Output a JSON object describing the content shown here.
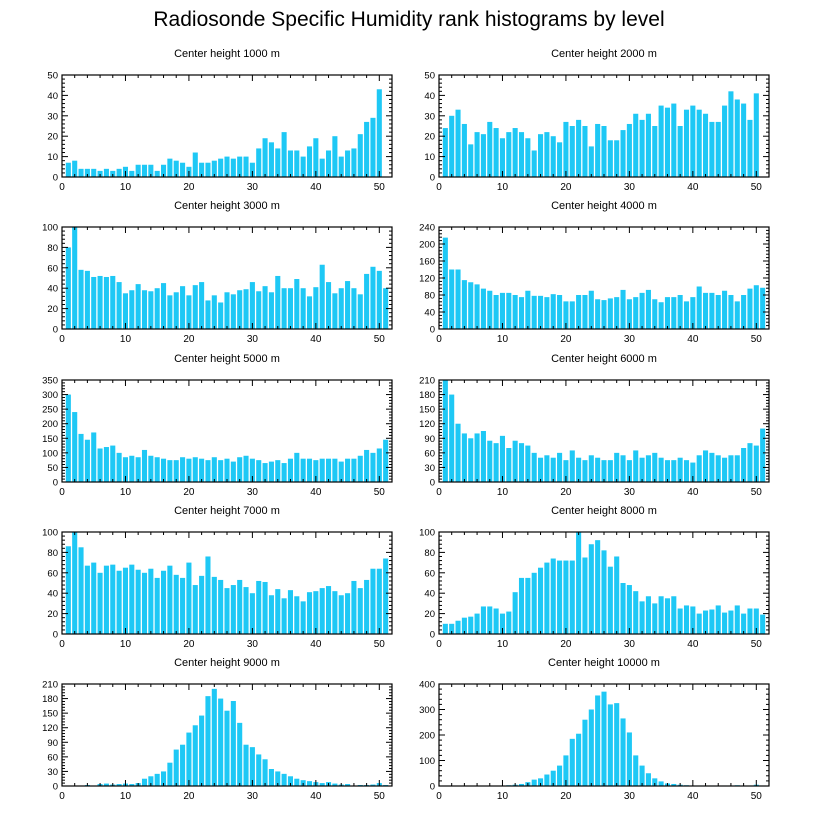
{
  "title": "Radiosonde Specific Humidity rank histograms by level",
  "colors": {
    "bar": "#1ec8f5",
    "axis": "#000000"
  },
  "chart_data": [
    {
      "type": "bar",
      "title": "Center height 1000 m",
      "xlim": [
        0,
        52
      ],
      "ylim": [
        0,
        50
      ],
      "xticks": [
        0,
        10,
        20,
        30,
        40,
        50
      ],
      "yticks": [
        0,
        10,
        20,
        30,
        40,
        50
      ],
      "x": [
        1,
        2,
        3,
        4,
        5,
        6,
        7,
        8,
        9,
        10,
        11,
        12,
        13,
        14,
        15,
        16,
        17,
        18,
        19,
        20,
        21,
        22,
        23,
        24,
        25,
        26,
        27,
        28,
        29,
        30,
        31,
        32,
        33,
        34,
        35,
        36,
        37,
        38,
        39,
        40,
        41,
        42,
        43,
        44,
        45,
        46,
        47,
        48,
        49,
        50,
        51
      ],
      "values": [
        7,
        8,
        4,
        4,
        4,
        3,
        4,
        3,
        4,
        5,
        3,
        6,
        6,
        6,
        3,
        6,
        9,
        8,
        7,
        5,
        12,
        7,
        7,
        8,
        9,
        10,
        9,
        10,
        10,
        7,
        14,
        19,
        17,
        14,
        22,
        13,
        13,
        10,
        15,
        19,
        9,
        13,
        20,
        10,
        13,
        14,
        21,
        27,
        29,
        43,
        0
      ]
    },
    {
      "type": "bar",
      "title": "Center height 2000 m",
      "xlim": [
        0,
        52
      ],
      "ylim": [
        0,
        50
      ],
      "xticks": [
        0,
        10,
        20,
        30,
        40,
        50
      ],
      "yticks": [
        0,
        10,
        20,
        30,
        40,
        50
      ],
      "x": [
        1,
        2,
        3,
        4,
        5,
        6,
        7,
        8,
        9,
        10,
        11,
        12,
        13,
        14,
        15,
        16,
        17,
        18,
        19,
        20,
        21,
        22,
        23,
        24,
        25,
        26,
        27,
        28,
        29,
        30,
        31,
        32,
        33,
        34,
        35,
        36,
        37,
        38,
        39,
        40,
        41,
        42,
        43,
        44,
        45,
        46,
        47,
        48,
        49,
        50,
        51
      ],
      "values": [
        24,
        30,
        33,
        26,
        16,
        22,
        21,
        27,
        24,
        19,
        22,
        24,
        22,
        19,
        13,
        21,
        22,
        20,
        17,
        27,
        25,
        28,
        25,
        15,
        26,
        25,
        18,
        18,
        23,
        26,
        31,
        28,
        31,
        25,
        35,
        34,
        36,
        25,
        33,
        35,
        33,
        31,
        27,
        27,
        35,
        42,
        38,
        36,
        28,
        41,
        0
      ]
    },
    {
      "type": "bar",
      "title": "Center height 3000 m",
      "xlim": [
        0,
        52
      ],
      "ylim": [
        0,
        100
      ],
      "xticks": [
        0,
        10,
        20,
        30,
        40,
        50
      ],
      "yticks": [
        0,
        20,
        40,
        60,
        80,
        100
      ],
      "x": [
        1,
        2,
        3,
        4,
        5,
        6,
        7,
        8,
        9,
        10,
        11,
        12,
        13,
        14,
        15,
        16,
        17,
        18,
        19,
        20,
        21,
        22,
        23,
        24,
        25,
        26,
        27,
        28,
        29,
        30,
        31,
        32,
        33,
        34,
        35,
        36,
        37,
        38,
        39,
        40,
        41,
        42,
        43,
        44,
        45,
        46,
        47,
        48,
        49,
        50,
        51
      ],
      "values": [
        80,
        100,
        58,
        57,
        51,
        52,
        51,
        52,
        46,
        35,
        38,
        44,
        38,
        37,
        40,
        45,
        33,
        36,
        42,
        33,
        43,
        46,
        28,
        33,
        26,
        36,
        34,
        38,
        39,
        46,
        37,
        42,
        36,
        52,
        40,
        40,
        49,
        40,
        32,
        41,
        63,
        46,
        35,
        40,
        47,
        40,
        34,
        54,
        61,
        57,
        40
      ]
    },
    {
      "type": "bar",
      "title": "Center height 4000 m",
      "xlim": [
        0,
        52
      ],
      "ylim": [
        0,
        240
      ],
      "xticks": [
        0,
        10,
        20,
        30,
        40,
        50
      ],
      "yticks": [
        0,
        40,
        80,
        120,
        160,
        200,
        240
      ],
      "x": [
        1,
        2,
        3,
        4,
        5,
        6,
        7,
        8,
        9,
        10,
        11,
        12,
        13,
        14,
        15,
        16,
        17,
        18,
        19,
        20,
        21,
        22,
        23,
        24,
        25,
        26,
        27,
        28,
        29,
        30,
        31,
        32,
        33,
        34,
        35,
        36,
        37,
        38,
        39,
        40,
        41,
        42,
        43,
        44,
        45,
        46,
        47,
        48,
        49,
        50,
        51
      ],
      "values": [
        215,
        140,
        140,
        115,
        110,
        105,
        95,
        90,
        80,
        85,
        85,
        80,
        75,
        90,
        78,
        78,
        75,
        82,
        80,
        65,
        65,
        80,
        80,
        90,
        70,
        68,
        72,
        75,
        92,
        70,
        75,
        85,
        92,
        70,
        63,
        75,
        75,
        80,
        65,
        75,
        100,
        85,
        85,
        80,
        90,
        80,
        65,
        80,
        95,
        103,
        97
      ]
    },
    {
      "type": "bar",
      "title": "Center height 5000 m",
      "xlim": [
        0,
        52
      ],
      "ylim": [
        0,
        350
      ],
      "xticks": [
        0,
        10,
        20,
        30,
        40,
        50
      ],
      "yticks": [
        0,
        50,
        100,
        150,
        200,
        250,
        300,
        350
      ],
      "x": [
        1,
        2,
        3,
        4,
        5,
        6,
        7,
        8,
        9,
        10,
        11,
        12,
        13,
        14,
        15,
        16,
        17,
        18,
        19,
        20,
        21,
        22,
        23,
        24,
        25,
        26,
        27,
        28,
        29,
        30,
        31,
        32,
        33,
        34,
        35,
        36,
        37,
        38,
        39,
        40,
        41,
        42,
        43,
        44,
        45,
        46,
        47,
        48,
        49,
        50,
        51
      ],
      "values": [
        300,
        240,
        165,
        145,
        170,
        115,
        120,
        125,
        100,
        85,
        90,
        85,
        110,
        90,
        85,
        80,
        75,
        75,
        85,
        80,
        85,
        80,
        75,
        85,
        75,
        80,
        70,
        85,
        90,
        80,
        75,
        65,
        70,
        75,
        65,
        80,
        100,
        80,
        80,
        75,
        80,
        80,
        80,
        70,
        80,
        80,
        90,
        110,
        100,
        115,
        145
      ]
    },
    {
      "type": "bar",
      "title": "Center height 6000 m",
      "xlim": [
        0,
        52
      ],
      "ylim": [
        0,
        210
      ],
      "xticks": [
        0,
        10,
        20,
        30,
        40,
        50
      ],
      "yticks": [
        0,
        30,
        60,
        90,
        120,
        150,
        180,
        210
      ],
      "x": [
        1,
        2,
        3,
        4,
        5,
        6,
        7,
        8,
        9,
        10,
        11,
        12,
        13,
        14,
        15,
        16,
        17,
        18,
        19,
        20,
        21,
        22,
        23,
        24,
        25,
        26,
        27,
        28,
        29,
        30,
        31,
        32,
        33,
        34,
        35,
        36,
        37,
        38,
        39,
        40,
        41,
        42,
        43,
        44,
        45,
        46,
        47,
        48,
        49,
        50,
        51
      ],
      "values": [
        210,
        180,
        120,
        100,
        90,
        100,
        105,
        85,
        80,
        95,
        70,
        85,
        80,
        75,
        60,
        50,
        55,
        50,
        60,
        45,
        65,
        50,
        45,
        55,
        50,
        45,
        45,
        60,
        55,
        45,
        65,
        50,
        55,
        60,
        50,
        45,
        45,
        50,
        45,
        40,
        55,
        65,
        60,
        55,
        50,
        55,
        55,
        70,
        80,
        75,
        110
      ]
    },
    {
      "type": "bar",
      "title": "Center height 7000 m",
      "xlim": [
        0,
        52
      ],
      "ylim": [
        0,
        100
      ],
      "xticks": [
        0,
        10,
        20,
        30,
        40,
        50
      ],
      "yticks": [
        0,
        20,
        40,
        60,
        80,
        100
      ],
      "x": [
        1,
        2,
        3,
        4,
        5,
        6,
        7,
        8,
        9,
        10,
        11,
        12,
        13,
        14,
        15,
        16,
        17,
        18,
        19,
        20,
        21,
        22,
        23,
        24,
        25,
        26,
        27,
        28,
        29,
        30,
        31,
        32,
        33,
        34,
        35,
        36,
        37,
        38,
        39,
        40,
        41,
        42,
        43,
        44,
        45,
        46,
        47,
        48,
        49,
        50,
        51
      ],
      "values": [
        86,
        100,
        85,
        67,
        70,
        60,
        67,
        68,
        62,
        65,
        68,
        63,
        60,
        64,
        55,
        62,
        67,
        58,
        55,
        70,
        48,
        57,
        76,
        56,
        53,
        45,
        48,
        53,
        46,
        40,
        52,
        51,
        38,
        44,
        35,
        43,
        37,
        32,
        41,
        42,
        45,
        47,
        42,
        38,
        40,
        52,
        45,
        53,
        64,
        64,
        74
      ]
    },
    {
      "type": "bar",
      "title": "Center height 8000 m",
      "xlim": [
        0,
        52
      ],
      "ylim": [
        0,
        100
      ],
      "xticks": [
        0,
        10,
        20,
        30,
        40,
        50
      ],
      "yticks": [
        0,
        20,
        40,
        60,
        80,
        100
      ],
      "x": [
        1,
        2,
        3,
        4,
        5,
        6,
        7,
        8,
        9,
        10,
        11,
        12,
        13,
        14,
        15,
        16,
        17,
        18,
        19,
        20,
        21,
        22,
        23,
        24,
        25,
        26,
        27,
        28,
        29,
        30,
        31,
        32,
        33,
        34,
        35,
        36,
        37,
        38,
        39,
        40,
        41,
        42,
        43,
        44,
        45,
        46,
        47,
        48,
        49,
        50,
        51
      ],
      "values": [
        10,
        10,
        13,
        16,
        17,
        20,
        27,
        27,
        25,
        20,
        22,
        41,
        55,
        55,
        60,
        65,
        70,
        74,
        72,
        72,
        72,
        100,
        75,
        88,
        92,
        82,
        66,
        76,
        50,
        48,
        42,
        32,
        37,
        30,
        37,
        35,
        37,
        25,
        28,
        27,
        20,
        23,
        24,
        28,
        21,
        23,
        28,
        20,
        25,
        25,
        19
      ]
    },
    {
      "type": "bar",
      "title": "Center height 9000 m",
      "xlim": [
        0,
        52
      ],
      "ylim": [
        0,
        210
      ],
      "xticks": [
        0,
        10,
        20,
        30,
        40,
        50
      ],
      "yticks": [
        0,
        30,
        60,
        90,
        120,
        150,
        180,
        210
      ],
      "x": [
        1,
        2,
        3,
        4,
        5,
        6,
        7,
        8,
        9,
        10,
        11,
        12,
        13,
        14,
        15,
        16,
        17,
        18,
        19,
        20,
        21,
        22,
        23,
        24,
        25,
        26,
        27,
        28,
        29,
        30,
        31,
        32,
        33,
        34,
        35,
        36,
        37,
        38,
        39,
        40,
        41,
        42,
        43,
        44,
        45,
        46,
        47,
        48,
        49,
        50,
        51
      ],
      "values": [
        0,
        0,
        1,
        2,
        1,
        4,
        5,
        3,
        4,
        5,
        4,
        6,
        15,
        20,
        25,
        30,
        48,
        75,
        85,
        110,
        125,
        145,
        185,
        200,
        180,
        155,
        175,
        130,
        85,
        80,
        65,
        55,
        35,
        30,
        25,
        20,
        15,
        12,
        10,
        8,
        6,
        8,
        5,
        3,
        4,
        1,
        2,
        2,
        3,
        6,
        2
      ]
    },
    {
      "type": "bar",
      "title": "Center height 10000 m",
      "xlim": [
        0,
        52
      ],
      "ylim": [
        0,
        400
      ],
      "xticks": [
        0,
        10,
        20,
        30,
        40,
        50
      ],
      "yticks": [
        0,
        100,
        200,
        300,
        400
      ],
      "x": [
        1,
        2,
        3,
        4,
        5,
        6,
        7,
        8,
        9,
        10,
        11,
        12,
        13,
        14,
        15,
        16,
        17,
        18,
        19,
        20,
        21,
        22,
        23,
        24,
        25,
        26,
        27,
        28,
        29,
        30,
        31,
        32,
        33,
        34,
        35,
        36,
        37,
        38,
        39,
        40,
        41,
        42,
        43,
        44,
        45,
        46,
        47,
        48,
        49,
        50,
        51
      ],
      "values": [
        0,
        0,
        0,
        0,
        0,
        0,
        1,
        1,
        1,
        2,
        3,
        5,
        8,
        15,
        25,
        30,
        45,
        60,
        80,
        120,
        185,
        205,
        260,
        300,
        355,
        370,
        320,
        325,
        265,
        210,
        120,
        80,
        50,
        30,
        18,
        10,
        8,
        5,
        3,
        2,
        2,
        2,
        2,
        1,
        2,
        2,
        3,
        2,
        2,
        5,
        2
      ]
    }
  ]
}
